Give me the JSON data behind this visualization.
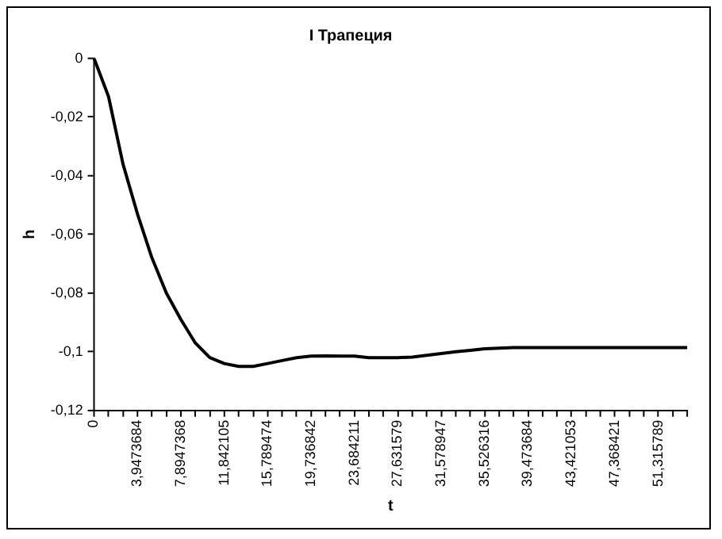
{
  "chart_data": {
    "type": "line",
    "title": "I Трапеция",
    "xlabel": "t",
    "ylabel": "h",
    "categories": [
      "0",
      null,
      null,
      "3,9473684",
      null,
      null,
      "7,8947368",
      null,
      null,
      "11,842105",
      null,
      null,
      "15,789474",
      null,
      null,
      "19,736842",
      null,
      null,
      "23,684211",
      null,
      null,
      "27,631579",
      null,
      null,
      "31,578947",
      null,
      null,
      "35,526316",
      null,
      null,
      "39,473684",
      null,
      null,
      "43,421053",
      null,
      null,
      "47,368421",
      null,
      null,
      "51,315789",
      null,
      null
    ],
    "values": [
      0,
      -0.013,
      -0.036,
      -0.053,
      -0.068,
      -0.08,
      -0.089,
      -0.097,
      -0.102,
      -0.104,
      -0.105,
      -0.105,
      -0.104,
      -0.103,
      -0.102,
      -0.1015,
      -0.1014,
      -0.1015,
      -0.1015,
      -0.102,
      -0.102,
      -0.102,
      -0.1018,
      -0.1012,
      -0.1006,
      -0.1,
      -0.0995,
      -0.099,
      -0.0988,
      -0.0986,
      -0.0986,
      -0.0986,
      -0.0986,
      -0.0986,
      -0.0986,
      -0.0986,
      -0.0986,
      -0.0986,
      -0.0986,
      -0.0986,
      -0.0986,
      -0.0986
    ],
    "color": "#000000",
    "marker": "none",
    "line_style": "solid",
    "grid": false,
    "legend": false,
    "ylim": [
      -0.12,
      0
    ],
    "yticks": [
      {
        "value": -0.12,
        "label": "-0,12"
      },
      {
        "value": -0.1,
        "label": "-0,1"
      },
      {
        "value": -0.08,
        "label": "-0,08"
      },
      {
        "value": -0.06,
        "label": "-0,06"
      },
      {
        "value": -0.04,
        "label": "-0,04"
      },
      {
        "value": -0.02,
        "label": "-0,02"
      },
      0
    ]
  }
}
